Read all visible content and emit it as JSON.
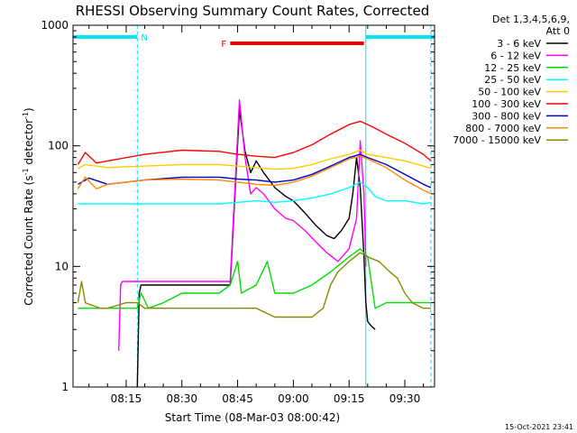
{
  "chart_data": {
    "type": "line",
    "title": "RHESSI Observing Summary Count Rates, Corrected",
    "xlabel": "Start Time (08-Mar-03 08:00:42)",
    "ylabel_main": "Corrected Count Rate (s",
    "ylabel_sup1": "-1",
    "ylabel_mid": " detector",
    "ylabel_sup2": "-1",
    "ylabel_end": ")",
    "y_scale": "log",
    "ylim": [
      1,
      1000
    ],
    "xlim_minutes": [
      0.7,
      98
    ],
    "x_ticks": [
      {
        "min": 15,
        "label": "08:15"
      },
      {
        "min": 30,
        "label": "08:30"
      },
      {
        "min": 45,
        "label": "08:45"
      },
      {
        "min": 60,
        "label": "09:00"
      },
      {
        "min": 75,
        "label": "09:15"
      },
      {
        "min": 90,
        "label": "09:30"
      }
    ],
    "y_ticks": [
      {
        "value": 1,
        "label": "1"
      },
      {
        "value": 10,
        "label": "10"
      },
      {
        "value": 100,
        "label": "100"
      },
      {
        "value": 1000,
        "label": "1000"
      }
    ],
    "legend_header": [
      "Det 1,3,4,5,6,9,",
      "Att 0"
    ],
    "legend_placement": "right",
    "flags": [
      {
        "label": "N",
        "x_start": 0.7,
        "x_end": 18,
        "color": "#00e5ff"
      },
      {
        "label": "",
        "x_start": 79.5,
        "x_end": 98,
        "color": "#00e5ff"
      },
      {
        "label": "F",
        "x_start": 43,
        "x_end": 79,
        "color": "#e60000"
      }
    ],
    "night_lines": [
      {
        "x": 0.7,
        "style": "solid"
      },
      {
        "x": 18,
        "style": "dashed"
      },
      {
        "x": 79.5,
        "style": "solid"
      },
      {
        "x": 97,
        "style": "dashed"
      }
    ],
    "series": [
      {
        "name": "3 - 6 keV",
        "color": "#000000",
        "x": [
          18,
          18.5,
          19,
          30,
          40,
          43,
          45.5,
          47,
          48.5,
          50,
          52,
          55,
          58,
          60,
          63,
          66,
          69,
          71,
          73,
          75,
          76,
          77,
          78,
          79,
          79.5,
          80,
          81,
          82
        ],
        "y": [
          1,
          6,
          7,
          7,
          7,
          7,
          200,
          90,
          60,
          75,
          60,
          45,
          38,
          35,
          28,
          22,
          18,
          17,
          20,
          25,
          40,
          80,
          45,
          12,
          5,
          3.5,
          3.2,
          3
        ]
      },
      {
        "name": "6 - 12 keV",
        "color": "#ff00ff",
        "x": [
          13,
          13.5,
          14,
          18,
          30,
          43,
          45.5,
          47,
          48.5,
          50,
          52,
          55,
          58,
          60,
          63,
          66,
          69,
          72,
          75,
          77,
          78,
          79,
          79.5
        ],
        "y": [
          2,
          7,
          7.5,
          7.5,
          7.5,
          7.5,
          240,
          80,
          40,
          45,
          40,
          30,
          25,
          24,
          20,
          16,
          13,
          11,
          14,
          25,
          110,
          40,
          10
        ]
      },
      {
        "name": "12 - 25 keV",
        "color": "#00dd00",
        "x": [
          2,
          10,
          18,
          19,
          21,
          25,
          30,
          40,
          43,
          45,
          46,
          50,
          53,
          55,
          60,
          65,
          70,
          75,
          78,
          80,
          82,
          85,
          90,
          95,
          97
        ],
        "y": [
          4.5,
          4.5,
          4.5,
          6,
          4.5,
          5,
          6,
          6,
          7,
          11,
          6,
          7,
          11,
          6,
          6,
          7,
          9,
          12,
          14,
          12,
          4.5,
          5,
          5,
          5,
          5
        ]
      },
      {
        "name": "25 - 50 keV",
        "color": "#00ffff",
        "x": [
          2,
          10,
          20,
          30,
          40,
          45,
          50,
          55,
          60,
          65,
          70,
          75,
          78,
          80,
          82,
          85,
          90,
          95,
          97
        ],
        "y": [
          33,
          33,
          33,
          33,
          33,
          34,
          35,
          34,
          35,
          37,
          40,
          45,
          50,
          45,
          38,
          35,
          35,
          33,
          34
        ]
      },
      {
        "name": "50 - 100 keV",
        "color": "#ffcc00",
        "x": [
          2,
          4,
          10,
          20,
          30,
          40,
          45,
          50,
          55,
          60,
          65,
          70,
          75,
          78,
          80,
          85,
          90,
          95,
          97
        ],
        "y": [
          65,
          70,
          66,
          68,
          70,
          70,
          68,
          66,
          64,
          65,
          70,
          78,
          85,
          92,
          85,
          80,
          75,
          68,
          65
        ]
      },
      {
        "name": "100 - 300 keV",
        "color": "#ff0000",
        "x": [
          2,
          4,
          7,
          10,
          20,
          30,
          40,
          45,
          50,
          55,
          60,
          65,
          70,
          75,
          78,
          80,
          82,
          85,
          90,
          95,
          97
        ],
        "y": [
          70,
          88,
          72,
          75,
          85,
          92,
          90,
          85,
          82,
          80,
          88,
          102,
          125,
          150,
          160,
          150,
          140,
          125,
          105,
          85,
          75
        ]
      },
      {
        "name": "300 - 800 keV",
        "color": "#0000cc",
        "x": [
          2,
          5,
          10,
          20,
          30,
          40,
          45,
          50,
          55,
          60,
          65,
          70,
          75,
          78,
          80,
          85,
          90,
          95,
          97
        ],
        "y": [
          48,
          54,
          48,
          52,
          55,
          55,
          53,
          52,
          50,
          52,
          58,
          68,
          80,
          85,
          80,
          70,
          58,
          48,
          45
        ]
      },
      {
        "name": "800 - 7000 keV",
        "color": "#ff8800",
        "x": [
          2,
          4,
          7,
          10,
          20,
          30,
          40,
          45,
          50,
          55,
          60,
          65,
          70,
          75,
          78,
          80,
          85,
          90,
          95,
          97
        ],
        "y": [
          44,
          55,
          44,
          48,
          52,
          53,
          52,
          50,
          48,
          47,
          50,
          56,
          66,
          78,
          82,
          78,
          66,
          52,
          43,
          40
        ]
      },
      {
        "name": "7000 - 15000 keV",
        "color": "#888800",
        "x": [
          2,
          3,
          4,
          8,
          10,
          15,
          18,
          20,
          25,
          30,
          35,
          40,
          45,
          50,
          55,
          60,
          65,
          68,
          70,
          72,
          75,
          78,
          80,
          83,
          86,
          88,
          90,
          92,
          95,
          97
        ],
        "y": [
          5,
          7.5,
          5,
          4.5,
          4.5,
          5,
          5,
          4.5,
          4.5,
          4.5,
          4.5,
          4.5,
          4.5,
          4.5,
          3.8,
          3.8,
          3.8,
          4.5,
          7,
          9,
          11,
          13,
          12,
          11,
          9,
          8,
          6,
          5,
          4.5,
          4.5
        ]
      }
    ],
    "timestamp": "15-Oct-2021 23:41"
  }
}
